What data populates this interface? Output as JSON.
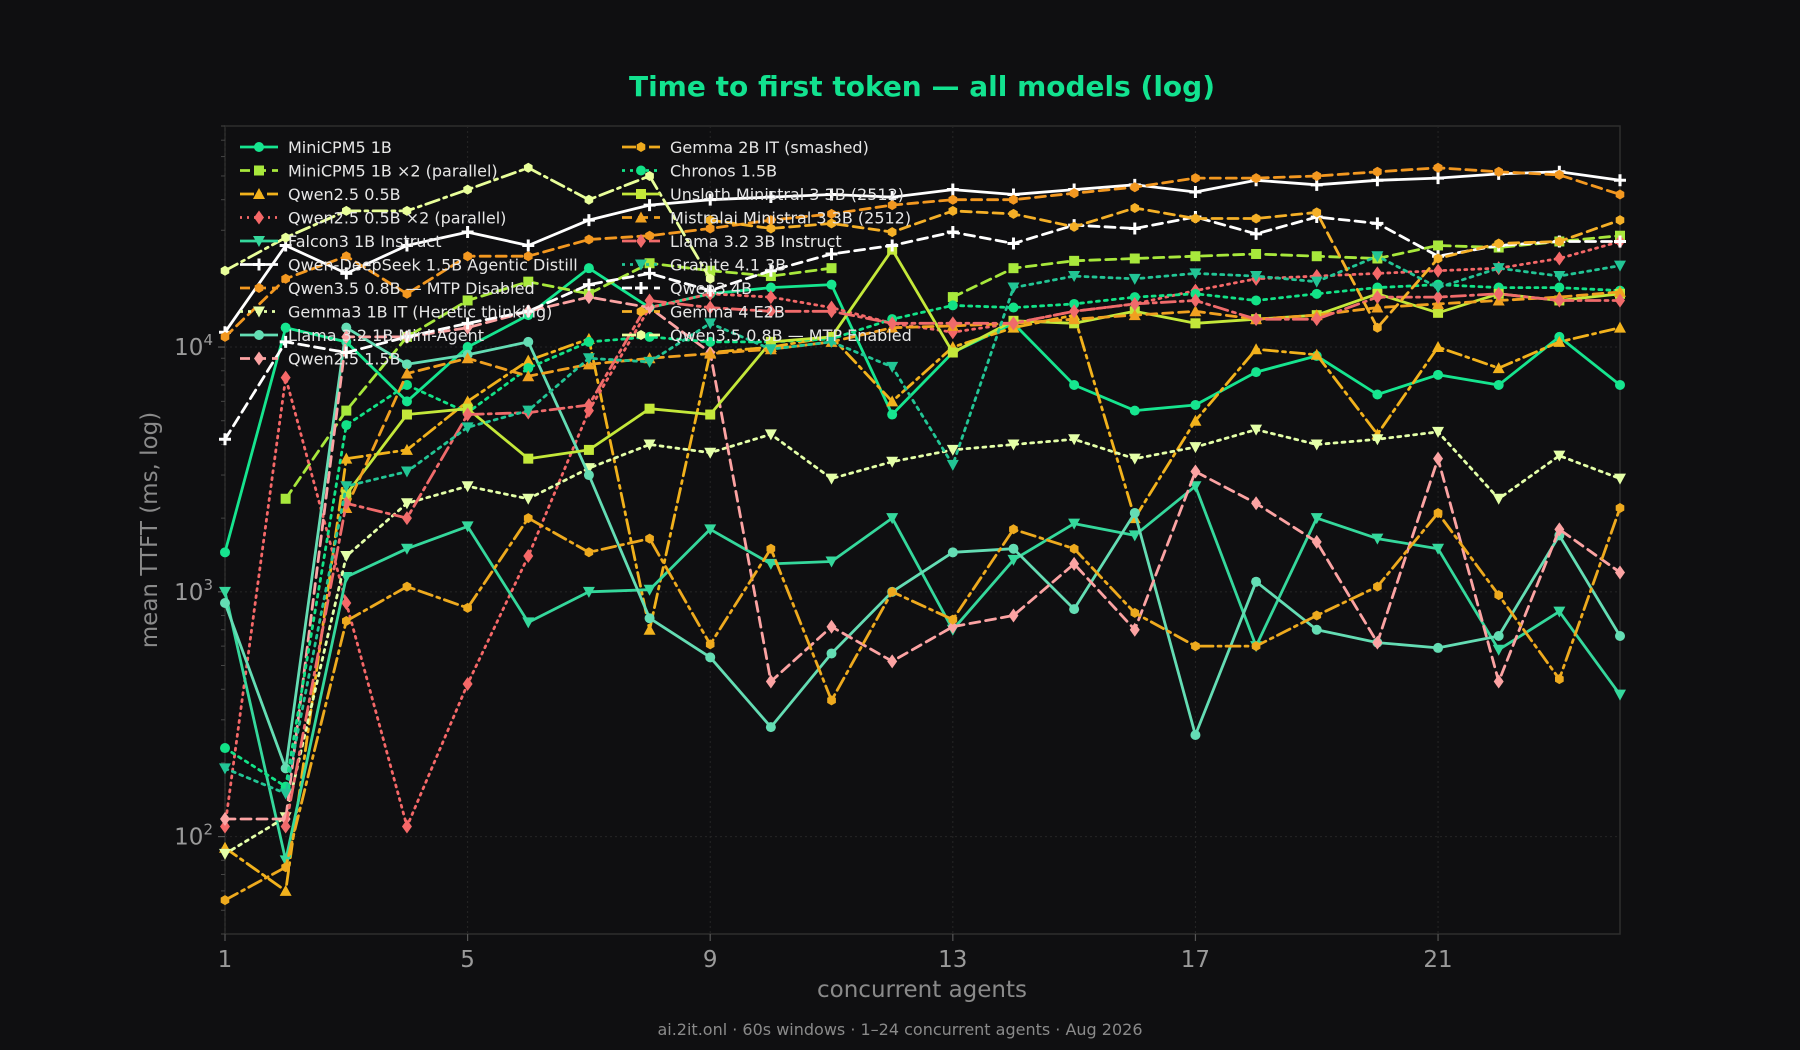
{
  "footer": "ai.2it.onl · 60s windows · 1–24 concurrent agents · Aug 2026",
  "chart_data": {
    "type": "line",
    "title": "Time to first token — all models (log)",
    "xlabel": "concurrent agents",
    "ylabel": "mean TTFT (ms, log)",
    "xlim": [
      1,
      24
    ],
    "ylim": [
      40,
      80000
    ],
    "yscale": "log",
    "xticks": [
      1,
      5,
      9,
      13,
      17,
      21
    ],
    "yticks": [
      {
        "value": 100,
        "base": "10",
        "exp": "2"
      },
      {
        "value": 1000,
        "base": "10",
        "exp": "3"
      },
      {
        "value": 10000,
        "base": "10",
        "exp": "4"
      }
    ],
    "grid": true,
    "legend_position": "top-left, two columns",
    "x": [
      1,
      2,
      3,
      4,
      5,
      6,
      7,
      8,
      9,
      10,
      11,
      12,
      13,
      14,
      15,
      16,
      17,
      18,
      19,
      20,
      21,
      22,
      23,
      24
    ],
    "series": [
      {
        "name": "MiniCPM5 1B",
        "color": "#16e58f",
        "dash": "",
        "marker": "circle",
        "values": [
          1450,
          12000,
          10500,
          6000,
          10000,
          13500,
          21000,
          14500,
          16500,
          17500,
          18000,
          5300,
          9500,
          12500,
          7000,
          5500,
          5800,
          7900,
          9200,
          6400,
          7700,
          7000,
          11000,
          7000
        ]
      },
      {
        "name": "MiniCPM5 1B ×2 (parallel)",
        "color": "#a8e83c",
        "dash": "10,6",
        "marker": "square",
        "values": [
          null,
          2400,
          5500,
          11000,
          15500,
          18500,
          16500,
          22000,
          20500,
          19500,
          21000,
          null,
          16000,
          21000,
          22500,
          23000,
          23500,
          24000,
          23500,
          23000,
          26000,
          25500,
          27000,
          28500
        ]
      },
      {
        "name": "Qwen2.5 0.5B",
        "color": "#f2b21c",
        "dash": "14,5,3,5",
        "marker": "triangle",
        "values": [
          90,
          60,
          3500,
          3800,
          6000,
          8800,
          10800,
          700,
          9500,
          10000,
          11000,
          6000,
          10000,
          12000,
          13500,
          2000,
          5000,
          9800,
          9300,
          4400,
          10000,
          8200,
          10500,
          12000
        ]
      },
      {
        "name": "Qwen2.5 0.5B ×2 (parallel)",
        "color": "#f56868",
        "dash": "2,5",
        "marker": "diamond",
        "values": [
          110,
          7500,
          900,
          110,
          420,
          1400,
          5500,
          14500,
          16500,
          16000,
          14500,
          12500,
          11500,
          12500,
          14000,
          15000,
          17000,
          19000,
          19500,
          20000,
          20500,
          21000,
          23000,
          27000
        ]
      },
      {
        "name": "Falcon3 1B Instruct",
        "color": "#35d89c",
        "dash": "",
        "marker": "tri_down",
        "values": [
          1000,
          80,
          1150,
          1500,
          1850,
          750,
          1000,
          1020,
          1800,
          1300,
          1330,
          2000,
          700,
          1350,
          1900,
          1700,
          2700,
          600,
          2000,
          1650,
          1500,
          580,
          830,
          380
        ]
      },
      {
        "name": "Qwen-DeepSeek 1.5B Agentic Distill",
        "color": "#ffffff",
        "dash": "",
        "marker": "plus",
        "values": [
          11500,
          26000,
          20000,
          26000,
          29500,
          26000,
          33000,
          38000,
          40000,
          41000,
          42000,
          41000,
          44000,
          42000,
          44000,
          46000,
          43000,
          48000,
          46000,
          48000,
          49000,
          51000,
          52000,
          48000
        ]
      },
      {
        "name": "Qwen3.5 0.8B — MTP Disabled",
        "color": "#f39820",
        "dash": "10,6",
        "marker": "hexagon",
        "values": [
          11000,
          19000,
          23500,
          16500,
          23500,
          23500,
          27500,
          28500,
          30500,
          33000,
          35000,
          38000,
          40000,
          40000,
          42500,
          45000,
          49000,
          49000,
          50000,
          52000,
          54000,
          52000,
          50500,
          42000
        ]
      },
      {
        "name": "Gemma3 1B IT (Heretic thinking)",
        "color": "#e4ffa8",
        "dash": "3,5",
        "marker": "tri_down",
        "values": [
          85,
          120,
          1400,
          2300,
          2700,
          2400,
          3200,
          4000,
          3700,
          4400,
          2900,
          3400,
          3800,
          4000,
          4200,
          3500,
          3900,
          4600,
          4000,
          4200,
          4500,
          2400,
          3600,
          2900
        ]
      },
      {
        "name": "Llama 3.2 1B Mini-Agent",
        "color": "#64ddb4",
        "dash": "",
        "marker": "circle",
        "values": [
          900,
          190,
          12000,
          8500,
          9300,
          10500,
          3000,
          780,
          540,
          280,
          560,
          1000,
          1450,
          1500,
          850,
          2100,
          260,
          1100,
          700,
          620,
          590,
          660,
          1700,
          660
        ]
      },
      {
        "name": "Qwen2.5 1.5B",
        "color": "#fca3a3",
        "dash": "10,6",
        "marker": "diamond",
        "values": [
          118,
          118,
          11000,
          11000,
          12000,
          14000,
          16000,
          14500,
          9500,
          430,
          720,
          520,
          720,
          800,
          1300,
          700,
          3100,
          2300,
          1600,
          620,
          3500,
          430,
          1800,
          1200
        ]
      },
      {
        "name": "Gemma 2B IT (smashed)",
        "color": "#eeaa1e",
        "dash": "14,5,3,5",
        "marker": "hexagon",
        "values": [
          55,
          75,
          760,
          1050,
          860,
          2000,
          1450,
          1650,
          610,
          1500,
          360,
          1000,
          770,
          1800,
          1500,
          820,
          600,
          600,
          800,
          1050,
          2100,
          970,
          440,
          2200
        ]
      },
      {
        "name": "Chronos 1.5B",
        "color": "#12e287",
        "dash": "3,5",
        "marker": "circle",
        "values": [
          230,
          160,
          4800,
          7000,
          5400,
          8200,
          10500,
          11000,
          10500,
          10500,
          10800,
          13000,
          14800,
          14500,
          15000,
          16000,
          16500,
          15500,
          16500,
          17500,
          18000,
          17500,
          17500,
          17000
        ]
      },
      {
        "name": "Unsloth Ministral 3 3B (2512)",
        "color": "#c4e83a",
        "dash": "",
        "marker": "square",
        "values": [
          null,
          null,
          2500,
          5300,
          5600,
          3500,
          3800,
          5600,
          5300,
          10500,
          11000,
          25000,
          9500,
          12800,
          12500,
          14000,
          12500,
          13000,
          13500,
          16500,
          13800,
          16500,
          15500,
          16500
        ]
      },
      {
        "name": "Mistralai Ministral 3 3B (2512)",
        "color": "#f0a020",
        "dash": "10,6",
        "marker": "triangle",
        "values": [
          null,
          null,
          2200,
          7800,
          9000,
          7600,
          8500,
          9000,
          9400,
          9800,
          10500,
          12000,
          12200,
          12500,
          13000,
          13500,
          14000,
          13000,
          13500,
          14500,
          15000,
          15500,
          16000,
          16800
        ]
      },
      {
        "name": "Llama 3.2 3B Instruct",
        "color": "#f06b6b",
        "dash": "14,5,3,5",
        "marker": "diamond",
        "values": [
          null,
          110,
          2300,
          2000,
          5300,
          5400,
          5800,
          15500,
          14500,
          14000,
          14000,
          12500,
          12500,
          12500,
          14000,
          15000,
          15500,
          13000,
          13000,
          16000,
          16000,
          16500,
          15500,
          15500
        ]
      },
      {
        "name": "Granite 4.1 3B",
        "color": "#22c595",
        "dash": "3,5",
        "marker": "tri_down",
        "values": [
          190,
          150,
          2700,
          3100,
          4700,
          5500,
          9000,
          8700,
          12500,
          9800,
          10500,
          8300,
          3300,
          17500,
          19500,
          19000,
          20000,
          19500,
          18500,
          23500,
          17500,
          21000,
          19500,
          21500
        ]
      },
      {
        "name": "Qwen3 4B",
        "color": "#ffffff",
        "dash": "10,6",
        "marker": "plus",
        "values": [
          4200,
          10500,
          9500,
          11000,
          12500,
          14000,
          18000,
          20000,
          17000,
          20500,
          24000,
          26000,
          29500,
          26500,
          31500,
          30500,
          34000,
          29000,
          34000,
          32000,
          23500,
          26000,
          27000,
          27000
        ]
      },
      {
        "name": "Gemma 4 E2B",
        "color": "#f5b027",
        "dash": "10,6",
        "marker": "hexagon",
        "values": [
          null,
          null,
          null,
          null,
          null,
          null,
          null,
          null,
          33000,
          30500,
          32000,
          29500,
          36000,
          35000,
          31000,
          37000,
          33500,
          33500,
          35500,
          12000,
          23000,
          26500,
          27000,
          33000
        ]
      },
      {
        "name": "Qwen3.5 0.8B — MTP Enabled",
        "color": "#e9ff9a",
        "dash": "14,5,3,5",
        "marker": "hexagon",
        "values": [
          20500,
          28000,
          36000,
          36000,
          44000,
          54000,
          40000,
          50000,
          19000,
          null,
          null,
          null,
          null,
          null,
          null,
          null,
          null,
          null,
          null,
          null,
          null,
          null,
          null,
          null
        ]
      }
    ]
  }
}
